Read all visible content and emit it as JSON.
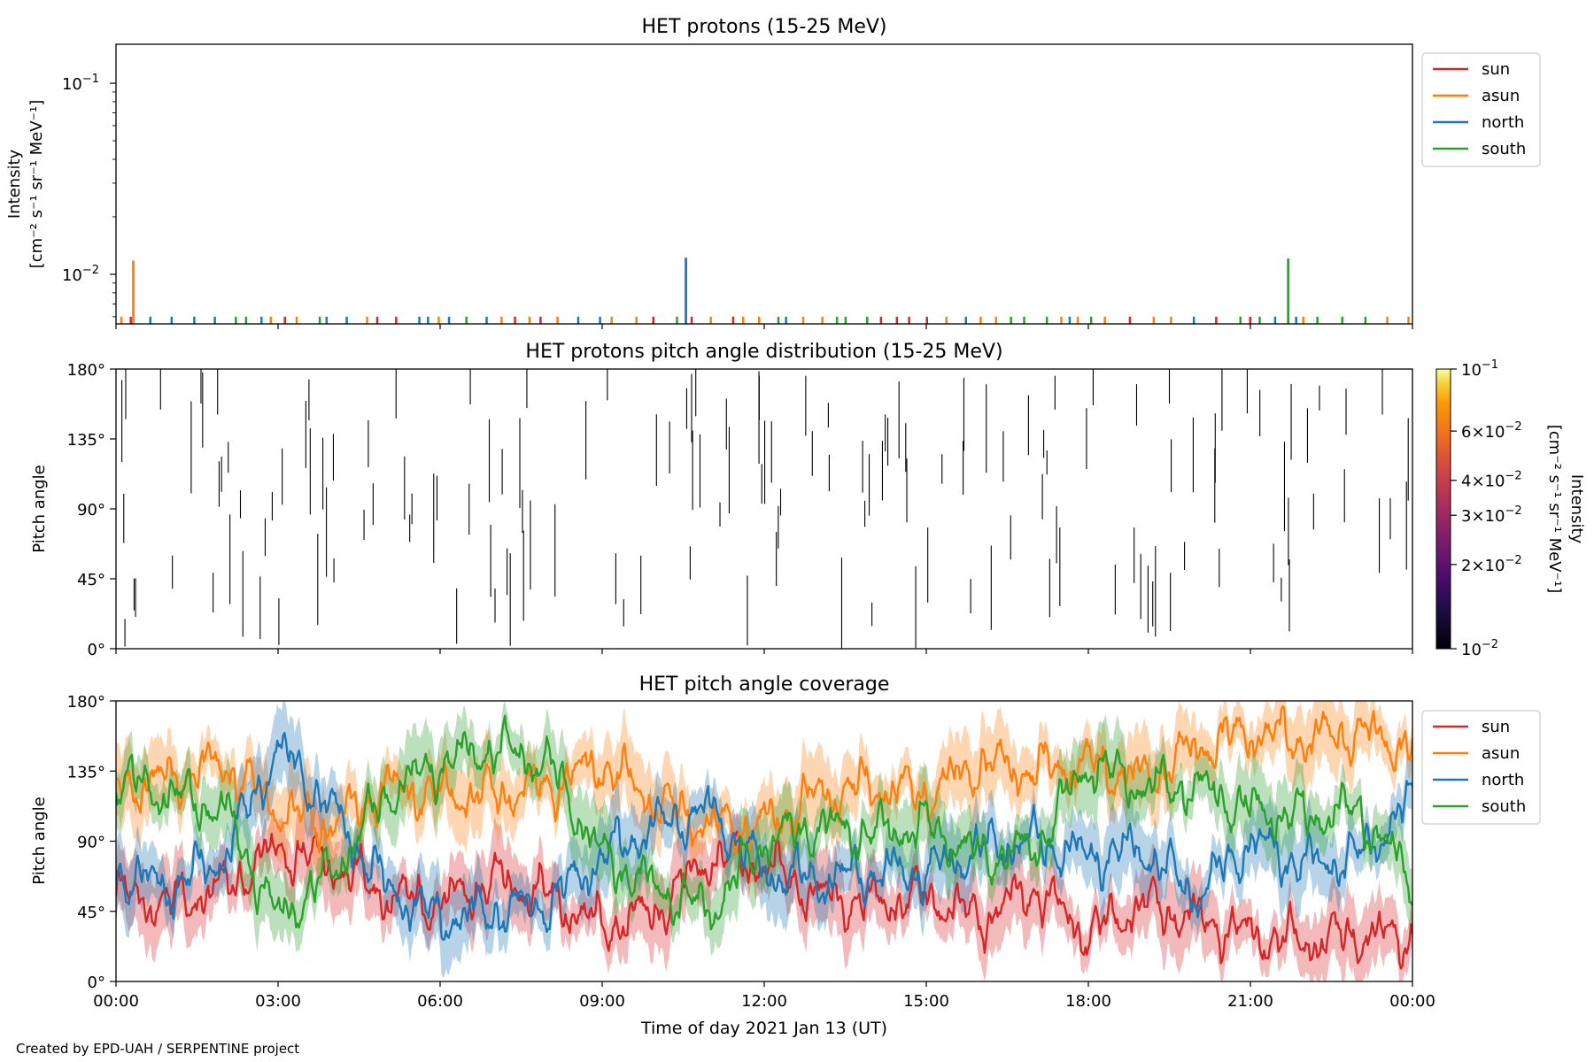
{
  "figure": {
    "credit": "Created by EPD-UAH / SERPENTINE project",
    "xlabel": "Time of day 2021 Jan 13 (UT)",
    "x_ticks": [
      "00:00",
      "03:00",
      "06:00",
      "09:00",
      "12:00",
      "15:00",
      "18:00",
      "21:00",
      "00:00"
    ],
    "series_colors": {
      "sun": "#d62728",
      "asun": "#ff7f0e",
      "north": "#1f77b4",
      "south": "#2ca02c"
    }
  },
  "chart_data": [
    {
      "type": "line",
      "title": "HET protons (15-25 MeV)",
      "ylabel_line1": "Intensity",
      "ylabel_line2": "[cm⁻² s⁻¹ sr⁻¹ MeV⁻¹]",
      "yscale": "log",
      "ylim": [
        0.0055,
        0.16
      ],
      "y_ticks": [
        {
          "value": 0.1,
          "base": "10",
          "exp": "−1"
        },
        {
          "value": 0.01,
          "base": "10",
          "exp": "−2"
        }
      ],
      "x_range_hours": [
        0,
        24
      ],
      "legend_position": "right-outside-top",
      "legend": [
        "sun",
        "asun",
        "north",
        "south"
      ],
      "noise_floor": 0.006,
      "peaks": [
        {
          "series": "asun",
          "x_hours": 0.32,
          "y": 0.0118
        },
        {
          "series": "north",
          "x_hours": 10.55,
          "y": 0.0122
        },
        {
          "series": "south",
          "x_hours": 21.7,
          "y": 0.0121
        }
      ]
    },
    {
      "type": "heatmap",
      "title": "HET protons pitch angle distribution (15-25 MeV)",
      "ylabel": "Pitch angle",
      "ylim": [
        0,
        180
      ],
      "y_ticks": [
        "0°",
        "45°",
        "90°",
        "135°",
        "180°"
      ],
      "x_range_hours": [
        0,
        24
      ],
      "colorbar": {
        "label_line1": "Intensity",
        "label_line2": "[cm⁻² s⁻¹ sr⁻¹ MeV⁻¹]",
        "scale": "log",
        "range": [
          0.01,
          0.1
        ],
        "colormap": "inferno",
        "ticks": [
          {
            "value": 0.1,
            "mant": "",
            "exp": "−1"
          },
          {
            "value": 0.06,
            "mant": "6",
            "exp": "−2"
          },
          {
            "value": 0.04,
            "mant": "4",
            "exp": "−2"
          },
          {
            "value": 0.03,
            "mant": "3",
            "exp": "−2"
          },
          {
            "value": 0.02,
            "mant": "2",
            "exp": "−2"
          },
          {
            "value": 0.01,
            "mant": "",
            "exp": "−2"
          }
        ]
      }
    },
    {
      "type": "line",
      "title": "HET pitch angle coverage",
      "ylabel": "Pitch angle",
      "ylim": [
        0,
        180
      ],
      "y_ticks": [
        "0°",
        "45°",
        "90°",
        "135°",
        "180°"
      ],
      "x_range_hours": [
        0,
        24
      ],
      "legend_position": "right-outside-top",
      "legend": [
        "sun",
        "asun",
        "north",
        "south"
      ],
      "shaded_bands": true,
      "series": [
        {
          "name": "sun",
          "x_hours": [
            0,
            1,
            2,
            3,
            4,
            5,
            6,
            7,
            8,
            9,
            10,
            11,
            12,
            13,
            14,
            15,
            16,
            17,
            18,
            19,
            20,
            21,
            22,
            23,
            24
          ],
          "values": [
            55,
            50,
            60,
            85,
            75,
            55,
            50,
            65,
            55,
            35,
            45,
            80,
            75,
            55,
            50,
            55,
            40,
            60,
            30,
            50,
            40,
            30,
            25,
            30,
            28
          ]
        },
        {
          "name": "asun",
          "x_hours": [
            0,
            1,
            2,
            3,
            4,
            5,
            6,
            7,
            8,
            9,
            10,
            11,
            12,
            13,
            14,
            15,
            16,
            17,
            18,
            19,
            20,
            21,
            22,
            23,
            24
          ],
          "values": [
            125,
            130,
            140,
            110,
            100,
            125,
            120,
            120,
            125,
            140,
            115,
            100,
            100,
            120,
            125,
            120,
            140,
            135,
            140,
            130,
            150,
            160,
            155,
            160,
            150
          ]
        },
        {
          "name": "north",
          "x_hours": [
            0,
            1,
            2,
            3,
            4,
            5,
            6,
            7,
            8,
            9,
            10,
            11,
            12,
            13,
            14,
            15,
            16,
            17,
            18,
            19,
            20,
            21,
            22,
            23,
            24
          ],
          "values": [
            70,
            60,
            80,
            150,
            110,
            60,
            40,
            45,
            50,
            80,
            100,
            110,
            70,
            65,
            70,
            70,
            85,
            90,
            80,
            85,
            55,
            90,
            75,
            80,
            115
          ]
        },
        {
          "name": "south",
          "x_hours": [
            0,
            1,
            2,
            3,
            4,
            5,
            6,
            7,
            8,
            9,
            10,
            11,
            12,
            13,
            14,
            15,
            16,
            17,
            18,
            19,
            20,
            21,
            22,
            23,
            24
          ],
          "values": [
            130,
            120,
            110,
            40,
            70,
            120,
            140,
            150,
            140,
            80,
            60,
            45,
            90,
            100,
            95,
            100,
            80,
            85,
            140,
            125,
            125,
            110,
            105,
            110,
            65
          ]
        }
      ]
    }
  ]
}
